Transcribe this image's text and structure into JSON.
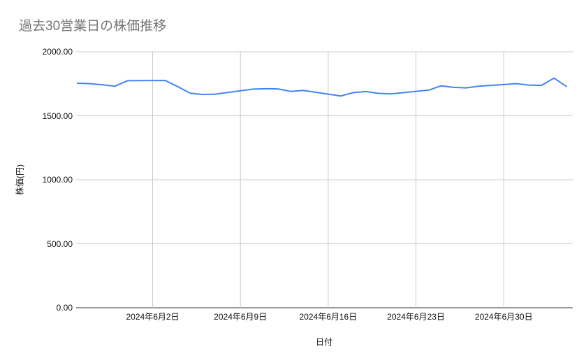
{
  "chart_data": {
    "type": "line",
    "title": "過去30営業日の株価推移",
    "xlabel": "日付",
    "ylabel": "株価(円)",
    "ylim": [
      0,
      2000
    ],
    "x_domain_days": [
      -0.1,
      39.5
    ],
    "grid": true,
    "legend": "none",
    "line_color": "#4285f4",
    "gridline_color": "#cccccc",
    "baseline_color": "#333333",
    "title_color": "#757575",
    "axis_label_color": "#111111",
    "y_ticks": [
      {
        "value": 0,
        "label": "0.00"
      },
      {
        "value": 500,
        "label": "500.00"
      },
      {
        "value": 1000,
        "label": "1000.00"
      },
      {
        "value": 1500,
        "label": "1500.00"
      },
      {
        "value": 2000,
        "label": "2000.00"
      }
    ],
    "x_ticks": [
      {
        "day": 6,
        "label": "2024年6月2日"
      },
      {
        "day": 13,
        "label": "2024年6月9日"
      },
      {
        "day": 20,
        "label": "2024年6月16日"
      },
      {
        "day": 27,
        "label": "2024年6月23日"
      },
      {
        "day": 34,
        "label": "2024年6月30日"
      }
    ],
    "series": [
      {
        "name": "株価",
        "dates": [
          "2024-05-27",
          "2024-05-28",
          "2024-05-29",
          "2024-05-30",
          "2024-05-31",
          "2024-06-03",
          "2024-06-04",
          "2024-06-05",
          "2024-06-06",
          "2024-06-07",
          "2024-06-10",
          "2024-06-11",
          "2024-06-12",
          "2024-06-13",
          "2024-06-14",
          "2024-06-17",
          "2024-06-18",
          "2024-06-19",
          "2024-06-20",
          "2024-06-21",
          "2024-06-24",
          "2024-06-25",
          "2024-06-26",
          "2024-06-27",
          "2024-06-28",
          "2024-07-01",
          "2024-07-02",
          "2024-07-03",
          "2024-07-04",
          "2024-07-05"
        ],
        "days": [
          0,
          1,
          2,
          3,
          4,
          7,
          8,
          9,
          10,
          11,
          14,
          15,
          16,
          17,
          18,
          21,
          22,
          23,
          24,
          25,
          28,
          29,
          30,
          31,
          32,
          35,
          36,
          37,
          38,
          39
        ],
        "values": [
          1754,
          1751,
          1742,
          1731,
          1774,
          1776,
          1728,
          1676,
          1666,
          1669,
          1708,
          1711,
          1710,
          1690,
          1698,
          1654,
          1681,
          1689,
          1675,
          1671,
          1700,
          1734,
          1722,
          1718,
          1731,
          1751,
          1740,
          1737,
          1794,
          1729
        ]
      }
    ]
  }
}
